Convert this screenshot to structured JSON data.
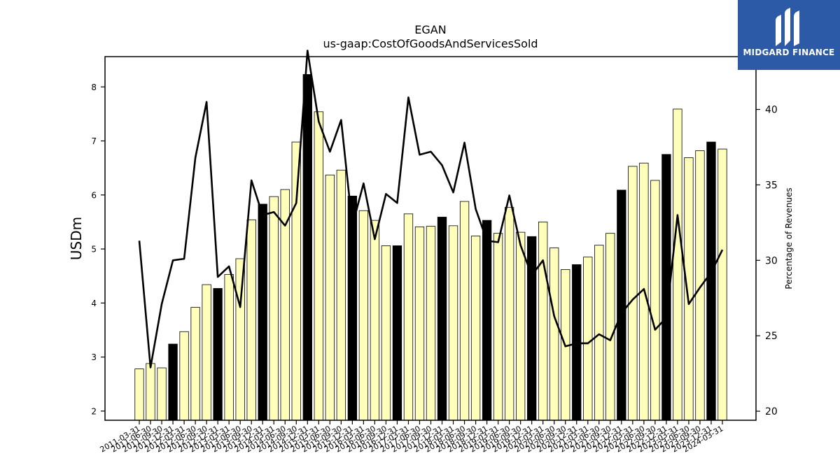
{
  "chart_data": {
    "type": "bar",
    "title": "EGAN",
    "subtitle": "us-gaap:CostOfGoodsAndServicesSold",
    "ylabel": "USDm",
    "y2label": "Percentage of Revenues",
    "ylim": [
      1.83,
      8.56
    ],
    "y2lim": [
      19.4,
      43.5
    ],
    "yticks": [
      "2",
      "3",
      "4",
      "5",
      "6",
      "7",
      "8"
    ],
    "y2ticks": [
      "20",
      "25",
      "30",
      "35",
      "40"
    ],
    "categories": [
      "2011-03-31",
      "2011-06-30",
      "2011-09-30",
      "2011-12-31",
      "2012-03-31",
      "2012-06-30",
      "2012-09-30",
      "2012-12-31",
      "2013-03-31",
      "2013-06-30",
      "2013-09-30",
      "2013-12-31",
      "2014-03-31",
      "2014-06-30",
      "2014-09-30",
      "2014-12-31",
      "2015-03-31",
      "2015-06-30",
      "2015-09-30",
      "2015-12-31",
      "2016-03-31",
      "2016-06-30",
      "2016-09-30",
      "2016-12-31",
      "2017-03-31",
      "2017-06-30",
      "2017-09-30",
      "2017-12-31",
      "2018-03-31",
      "2018-06-30",
      "2018-09-30",
      "2018-12-31",
      "2019-03-31",
      "2019-06-30",
      "2019-09-30",
      "2019-12-31",
      "2020-03-31",
      "2020-06-30",
      "2020-09-30",
      "2020-12-31",
      "2021-03-31",
      "2021-06-30",
      "2021-09-30",
      "2021-12-31",
      "2022-03-31",
      "2022-06-30",
      "2022-09-30",
      "2022-12-31",
      "2023-03-31",
      "2023-06-30",
      "2023-09-30",
      "2023-12-31",
      "2024-03-31"
    ],
    "series": [
      {
        "type": "bar",
        "axis": "left",
        "values": [
          2.78,
          2.88,
          2.8,
          3.24,
          3.47,
          3.92,
          4.34,
          4.27,
          4.53,
          4.82,
          5.54,
          5.83,
          5.97,
          6.1,
          6.98,
          8.23,
          7.54,
          6.37,
          6.46,
          5.98,
          5.71,
          5.53,
          5.06,
          5.06,
          5.65,
          5.41,
          5.42,
          5.59,
          5.43,
          5.88,
          5.24,
          5.53,
          5.29,
          5.77,
          5.31,
          5.23,
          5.5,
          5.02,
          4.62,
          4.71,
          4.85,
          5.07,
          5.29,
          6.09,
          6.53,
          6.59,
          6.27,
          6.75,
          7.59,
          6.69,
          6.82,
          6.98,
          6.85
        ]
      },
      {
        "type": "line",
        "axis": "right",
        "values": [
          31.3,
          22.9,
          27.1,
          30.0,
          30.1,
          36.8,
          40.5,
          28.9,
          29.6,
          26.9,
          35.3,
          33.0,
          33.2,
          32.3,
          33.8,
          43.9,
          39.2,
          37.2,
          39.3,
          32.3,
          35.1,
          31.4,
          34.4,
          33.8,
          40.8,
          37.0,
          37.2,
          36.3,
          34.5,
          37.8,
          33.4,
          31.3,
          31.2,
          34.3,
          31.0,
          29.0,
          30.0,
          26.3,
          24.3,
          24.5,
          24.5,
          25.1,
          24.7,
          26.5,
          27.4,
          28.1,
          25.4,
          26.2,
          33.0,
          27.1,
          28.2,
          29.2,
          30.7
        ]
      }
    ],
    "colors": {
      "bar_fill": "#ffffbb",
      "bar_highlight": "#000000",
      "line": "#000000"
    }
  },
  "logo": {
    "text": "MIDGARD FINANCE",
    "background": "#2d5aa7"
  }
}
